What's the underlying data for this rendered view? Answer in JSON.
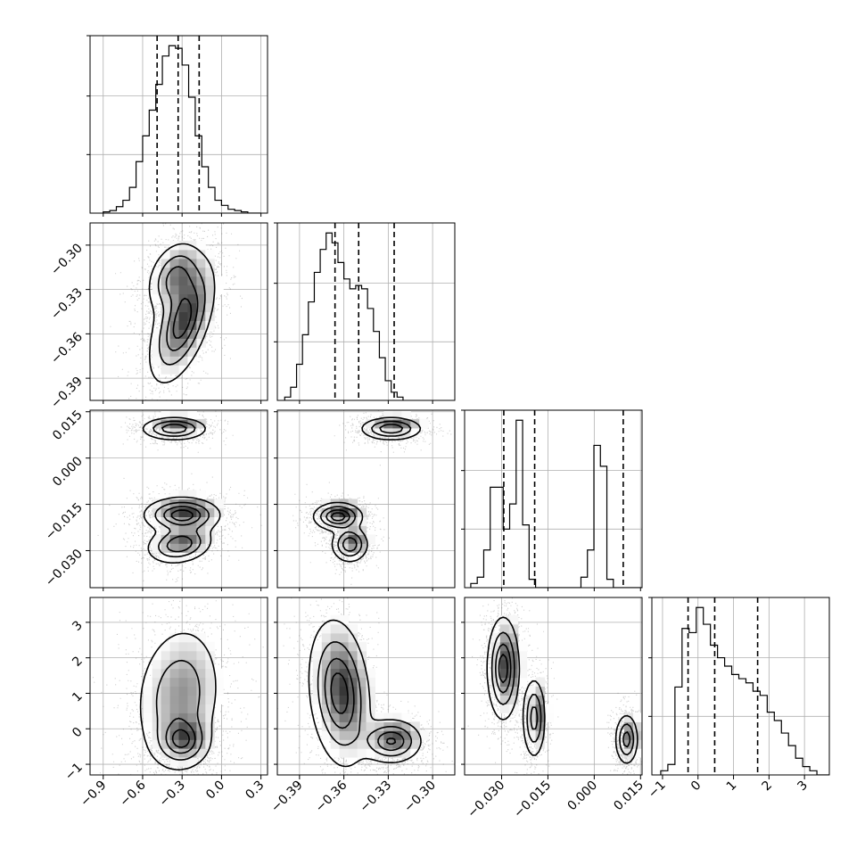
{
  "chart_data": {
    "type": "corner",
    "parameters": [
      {
        "id": "p0",
        "range": [
          -1.0,
          0.35
        ],
        "ticks": [
          -0.9,
          -0.6,
          -0.3,
          0.0,
          0.3
        ],
        "tick_labels": [
          "−0.9",
          "−0.6",
          "−0.3",
          "0.0",
          "0.3"
        ],
        "quantiles": [
          -0.49,
          -0.33,
          -0.17
        ]
      },
      {
        "id": "p1",
        "range": [
          -0.405,
          -0.285
        ],
        "ticks": [
          -0.39,
          -0.36,
          -0.33,
          -0.3
        ],
        "tick_labels": [
          "−0.39",
          "−0.36",
          "−0.33",
          "−0.30"
        ],
        "quantiles": [
          -0.366,
          -0.35,
          -0.326
        ]
      },
      {
        "id": "p2",
        "range": [
          -0.042,
          0.0155
        ],
        "ticks": [
          -0.03,
          -0.015,
          0.0,
          0.015
        ],
        "tick_labels": [
          "−0.030",
          "−0.015",
          "0.000",
          "0.015"
        ],
        "quantiles": [
          -0.0293,
          -0.0193,
          0.0094
        ]
      },
      {
        "id": "p3",
        "range": [
          -1.3,
          3.7
        ],
        "ticks": [
          -1,
          0,
          1,
          2,
          3
        ],
        "tick_labels": [
          "−1",
          "0",
          "1",
          "2",
          "3"
        ],
        "quantiles": [
          -0.28,
          0.47,
          1.68
        ]
      }
    ],
    "histograms": [
      {
        "param": "p0",
        "bin_edges_start": -0.9,
        "bin_width": 0.05,
        "counts": [
          1,
          2,
          5,
          10,
          20,
          40,
          60,
          80,
          100,
          122,
          130,
          128,
          115,
          90,
          60,
          36,
          20,
          10,
          6,
          3,
          2,
          1,
          0,
          0
        ]
      },
      {
        "param": "p1",
        "bin_edges_start": -0.4,
        "bin_width": 0.004,
        "counts": [
          2,
          8,
          22,
          40,
          60,
          78,
          92,
          102,
          96,
          84,
          74,
          68,
          70,
          68,
          56,
          42,
          26,
          12,
          5,
          2
        ]
      },
      {
        "param": "p2",
        "bin_edges_start": -0.04,
        "bin_width": 0.0021,
        "counts": [
          2,
          5,
          18,
          48,
          48,
          28,
          40,
          80,
          30,
          4,
          0,
          0,
          0,
          0,
          0,
          0,
          0,
          5,
          18,
          68,
          58,
          4,
          0,
          0,
          0,
          0,
          0
        ]
      },
      {
        "param": "p3",
        "bin_edges_start": -1.05,
        "bin_width": 0.2,
        "counts": [
          2,
          5,
          42,
          70,
          68,
          80,
          72,
          62,
          56,
          52,
          48,
          46,
          44,
          40,
          38,
          30,
          26,
          20,
          14,
          8,
          4,
          2,
          0,
          0
        ]
      }
    ],
    "density_clusters": [
      {
        "x": "p0",
        "y": "p1",
        "clusters": [
          {
            "cx": -0.3,
            "cy": -0.352,
            "sx": 0.12,
            "sy": 0.02,
            "rho": 0.55,
            "weight": 1.0
          },
          {
            "cx": -0.36,
            "cy": -0.322,
            "sx": 0.1,
            "sy": 0.012,
            "rho": 0.3,
            "weight": 0.7
          }
        ]
      },
      {
        "x": "p0",
        "y": "p2",
        "clusters": [
          {
            "cx": -0.36,
            "cy": 0.0095,
            "sx": 0.12,
            "sy": 0.0018,
            "rho": 0.0,
            "weight": 0.5
          },
          {
            "cx": -0.3,
            "cy": -0.0185,
            "sx": 0.14,
            "sy": 0.0028,
            "rho": 0.0,
            "weight": 0.6
          },
          {
            "cx": -0.32,
            "cy": -0.028,
            "sx": 0.12,
            "sy": 0.003,
            "rho": 0.2,
            "weight": 0.5
          }
        ]
      },
      {
        "x": "p1",
        "y": "p2",
        "clusters": [
          {
            "cx": -0.328,
            "cy": 0.0095,
            "sx": 0.01,
            "sy": 0.0018,
            "rho": 0.0,
            "weight": 0.5
          },
          {
            "cx": -0.364,
            "cy": -0.019,
            "sx": 0.008,
            "sy": 0.0022,
            "rho": 0.0,
            "weight": 0.6
          },
          {
            "cx": -0.356,
            "cy": -0.028,
            "sx": 0.006,
            "sy": 0.0028,
            "rho": 0.0,
            "weight": 0.5
          }
        ]
      },
      {
        "x": "p0",
        "y": "p3",
        "clusters": [
          {
            "cx": -0.3,
            "cy": -0.35,
            "sx": 0.1,
            "sy": 0.35,
            "rho": 0.0,
            "weight": 1.0
          },
          {
            "cx": -0.33,
            "cy": 0.9,
            "sx": 0.16,
            "sy": 1.0,
            "rho": 0.15,
            "weight": 0.8
          }
        ]
      },
      {
        "x": "p1",
        "y": "p3",
        "clusters": [
          {
            "cx": -0.363,
            "cy": 1.0,
            "sx": 0.01,
            "sy": 1.0,
            "rho": -0.2,
            "weight": 0.9
          },
          {
            "cx": -0.328,
            "cy": -0.35,
            "sx": 0.01,
            "sy": 0.3,
            "rho": 0.0,
            "weight": 0.8
          }
        ]
      },
      {
        "x": "p2",
        "y": "p3",
        "clusters": [
          {
            "cx": -0.0295,
            "cy": 1.7,
            "sx": 0.0025,
            "sy": 0.7,
            "rho": 0.0,
            "weight": 0.8
          },
          {
            "cx": -0.0195,
            "cy": 0.3,
            "sx": 0.0018,
            "sy": 0.55,
            "rho": 0.0,
            "weight": 0.6
          },
          {
            "cx": 0.0105,
            "cy": -0.3,
            "sx": 0.0018,
            "sy": 0.35,
            "rho": 0.0,
            "weight": 0.6
          }
        ]
      }
    ],
    "grid": true,
    "colors": {
      "line": "#000000",
      "grid": "#b0b0b0",
      "scatter": "#555555"
    }
  }
}
